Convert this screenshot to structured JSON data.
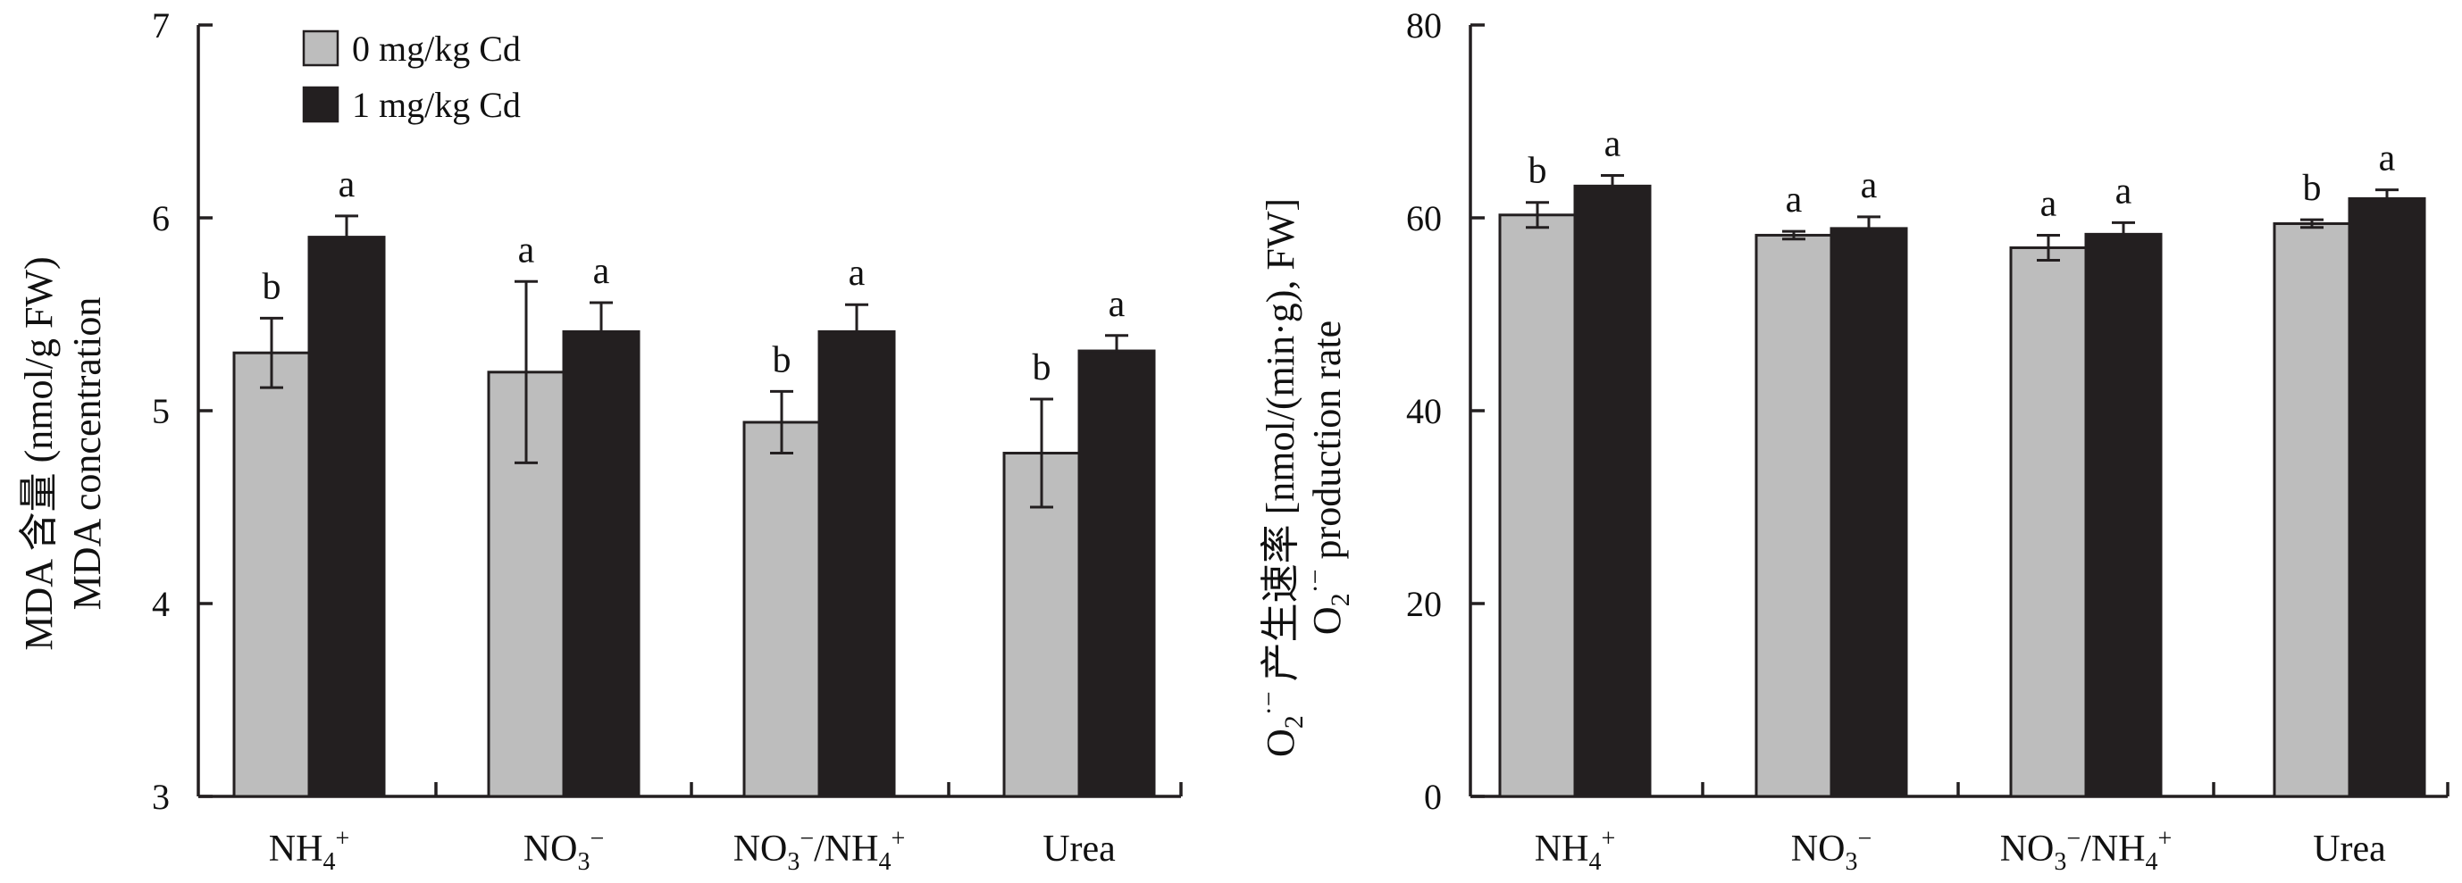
{
  "colors": {
    "series0": "#bdbdbd",
    "series1": "#231f20",
    "axis": "#231f20"
  },
  "legend": [
    {
      "label": "0 mg/kg Cd"
    },
    {
      "label": "1 mg/kg Cd"
    }
  ],
  "chart_data": [
    {
      "type": "bar",
      "categories": [
        "NH4+",
        "NO3−",
        "NO3−/NH4+",
        "Urea"
      ],
      "series": [
        {
          "name": "0 mg/kg Cd",
          "values": [
            5.3,
            5.2,
            4.94,
            4.78
          ],
          "errors": [
            0.18,
            0.47,
            0.16,
            0.28
          ],
          "letters": [
            "b",
            "a",
            "b",
            "b"
          ]
        },
        {
          "name": "1 mg/kg Cd",
          "values": [
            5.9,
            5.41,
            5.41,
            5.31
          ],
          "errors": [
            0.11,
            0.15,
            0.14,
            0.08
          ],
          "letters": [
            "a",
            "a",
            "a",
            "a"
          ]
        }
      ],
      "ylim": [
        3,
        7
      ],
      "yticks": [
        3,
        4,
        5,
        6,
        7
      ],
      "ylabel_zh": "MDA 含量 (nmol/g FW)",
      "ylabel_en": "MDA concentration"
    },
    {
      "type": "bar",
      "categories": [
        "NH4+",
        "NO3−",
        "NO3−/NH4+",
        "Urea"
      ],
      "series": [
        {
          "name": "0 mg/kg Cd",
          "values": [
            60.3,
            58.2,
            56.9,
            59.4
          ],
          "errors": [
            1.3,
            0.4,
            1.3,
            0.4
          ],
          "letters": [
            "b",
            "a",
            "a",
            "b"
          ]
        },
        {
          "name": "1 mg/kg Cd",
          "values": [
            63.3,
            58.9,
            58.3,
            62.0
          ],
          "errors": [
            1.1,
            1.2,
            1.2,
            0.9
          ],
          "letters": [
            "a",
            "a",
            "a",
            "a"
          ]
        }
      ],
      "ylim": [
        0,
        80
      ],
      "yticks": [
        0,
        20,
        40,
        60,
        80
      ],
      "ylabel_zh": "O2·− 产生速率 [nmol/(min·g), FW]",
      "ylabel_en": "O2·− production rate"
    }
  ]
}
